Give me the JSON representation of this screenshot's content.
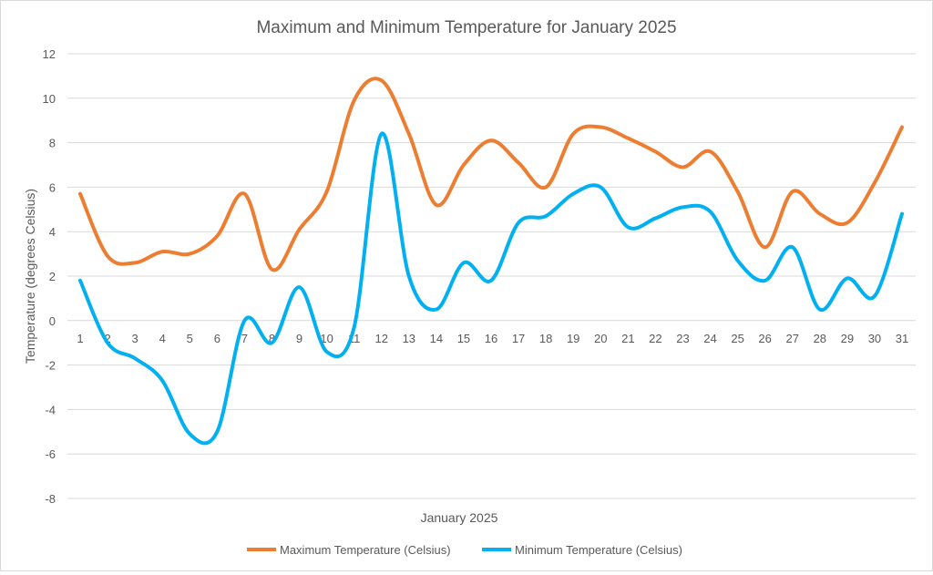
{
  "chart_data": {
    "type": "line",
    "title": "Maximum and Minimum Temperature for January 2025",
    "xlabel": "January 2025",
    "ylabel": "Temperature (degrees Celsius)",
    "ylim": [
      -8,
      12
    ],
    "yticks": [
      -8,
      -6,
      -4,
      -2,
      0,
      2,
      4,
      6,
      8,
      10,
      12
    ],
    "grid": true,
    "smooth": true,
    "legend": "bottom",
    "categories": [
      1,
      2,
      3,
      4,
      5,
      6,
      7,
      8,
      9,
      10,
      11,
      12,
      13,
      14,
      15,
      16,
      17,
      18,
      19,
      20,
      21,
      22,
      23,
      24,
      25,
      26,
      27,
      28,
      29,
      30,
      31
    ],
    "series": [
      {
        "name": "Maximum Temperature (Celsius)",
        "color": "#ed7d31",
        "values": [
          5.7,
          2.9,
          2.6,
          3.1,
          3.0,
          3.8,
          5.7,
          2.3,
          4.1,
          5.8,
          9.9,
          10.8,
          8.4,
          5.2,
          7.0,
          8.1,
          7.1,
          6.0,
          8.4,
          8.7,
          8.2,
          7.6,
          6.9,
          7.6,
          5.8,
          3.3,
          5.8,
          4.8,
          4.4,
          6.2,
          8.7
        ]
      },
      {
        "name": "Minimum Temperature (Celsius)",
        "color": "#00b0f0",
        "values": [
          1.8,
          -1.0,
          -1.7,
          -2.7,
          -5.1,
          -5.0,
          0.0,
          -1.0,
          1.5,
          -1.4,
          -0.3,
          8.4,
          2.0,
          0.5,
          2.6,
          1.8,
          4.4,
          4.7,
          5.7,
          6.0,
          4.2,
          4.6,
          5.1,
          4.9,
          2.7,
          1.8,
          3.3,
          0.5,
          1.9,
          1.1,
          4.8
        ]
      }
    ]
  }
}
